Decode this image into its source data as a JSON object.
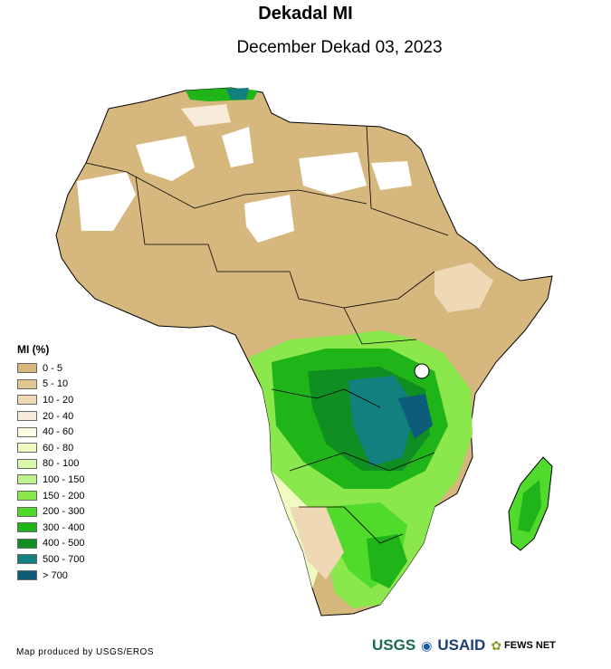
{
  "title": "Dekadal MI",
  "subtitle": "December Dekad 03, 2023",
  "legend": {
    "title": "MI (%)",
    "items": [
      {
        "label": "0 - 5",
        "color": "#d6b77d"
      },
      {
        "label": "5 - 10",
        "color": "#e2c692"
      },
      {
        "label": "10 - 20",
        "color": "#efd8b4"
      },
      {
        "label": "20 - 40",
        "color": "#f6ebd8"
      },
      {
        "label": "40 - 60",
        "color": "#fdfde2"
      },
      {
        "label": "60 - 80",
        "color": "#f0fbc2"
      },
      {
        "label": "80 - 100",
        "color": "#dcf8ad"
      },
      {
        "label": "100 - 150",
        "color": "#bff28c"
      },
      {
        "label": "150 - 200",
        "color": "#8be84c"
      },
      {
        "label": "200 - 300",
        "color": "#4fda2c"
      },
      {
        "label": "300 - 400",
        "color": "#1fb418"
      },
      {
        "label": "400 - 500",
        "color": "#108e22"
      },
      {
        "label": "500 - 700",
        "color": "#11807e"
      },
      {
        "label": "> 700",
        "color": "#0c5c7a"
      }
    ]
  },
  "credit": "Map produced by USGS/EROS",
  "logos": {
    "usgs": "USGS",
    "usaid": "USAID",
    "fews": "FEWS NET"
  }
}
